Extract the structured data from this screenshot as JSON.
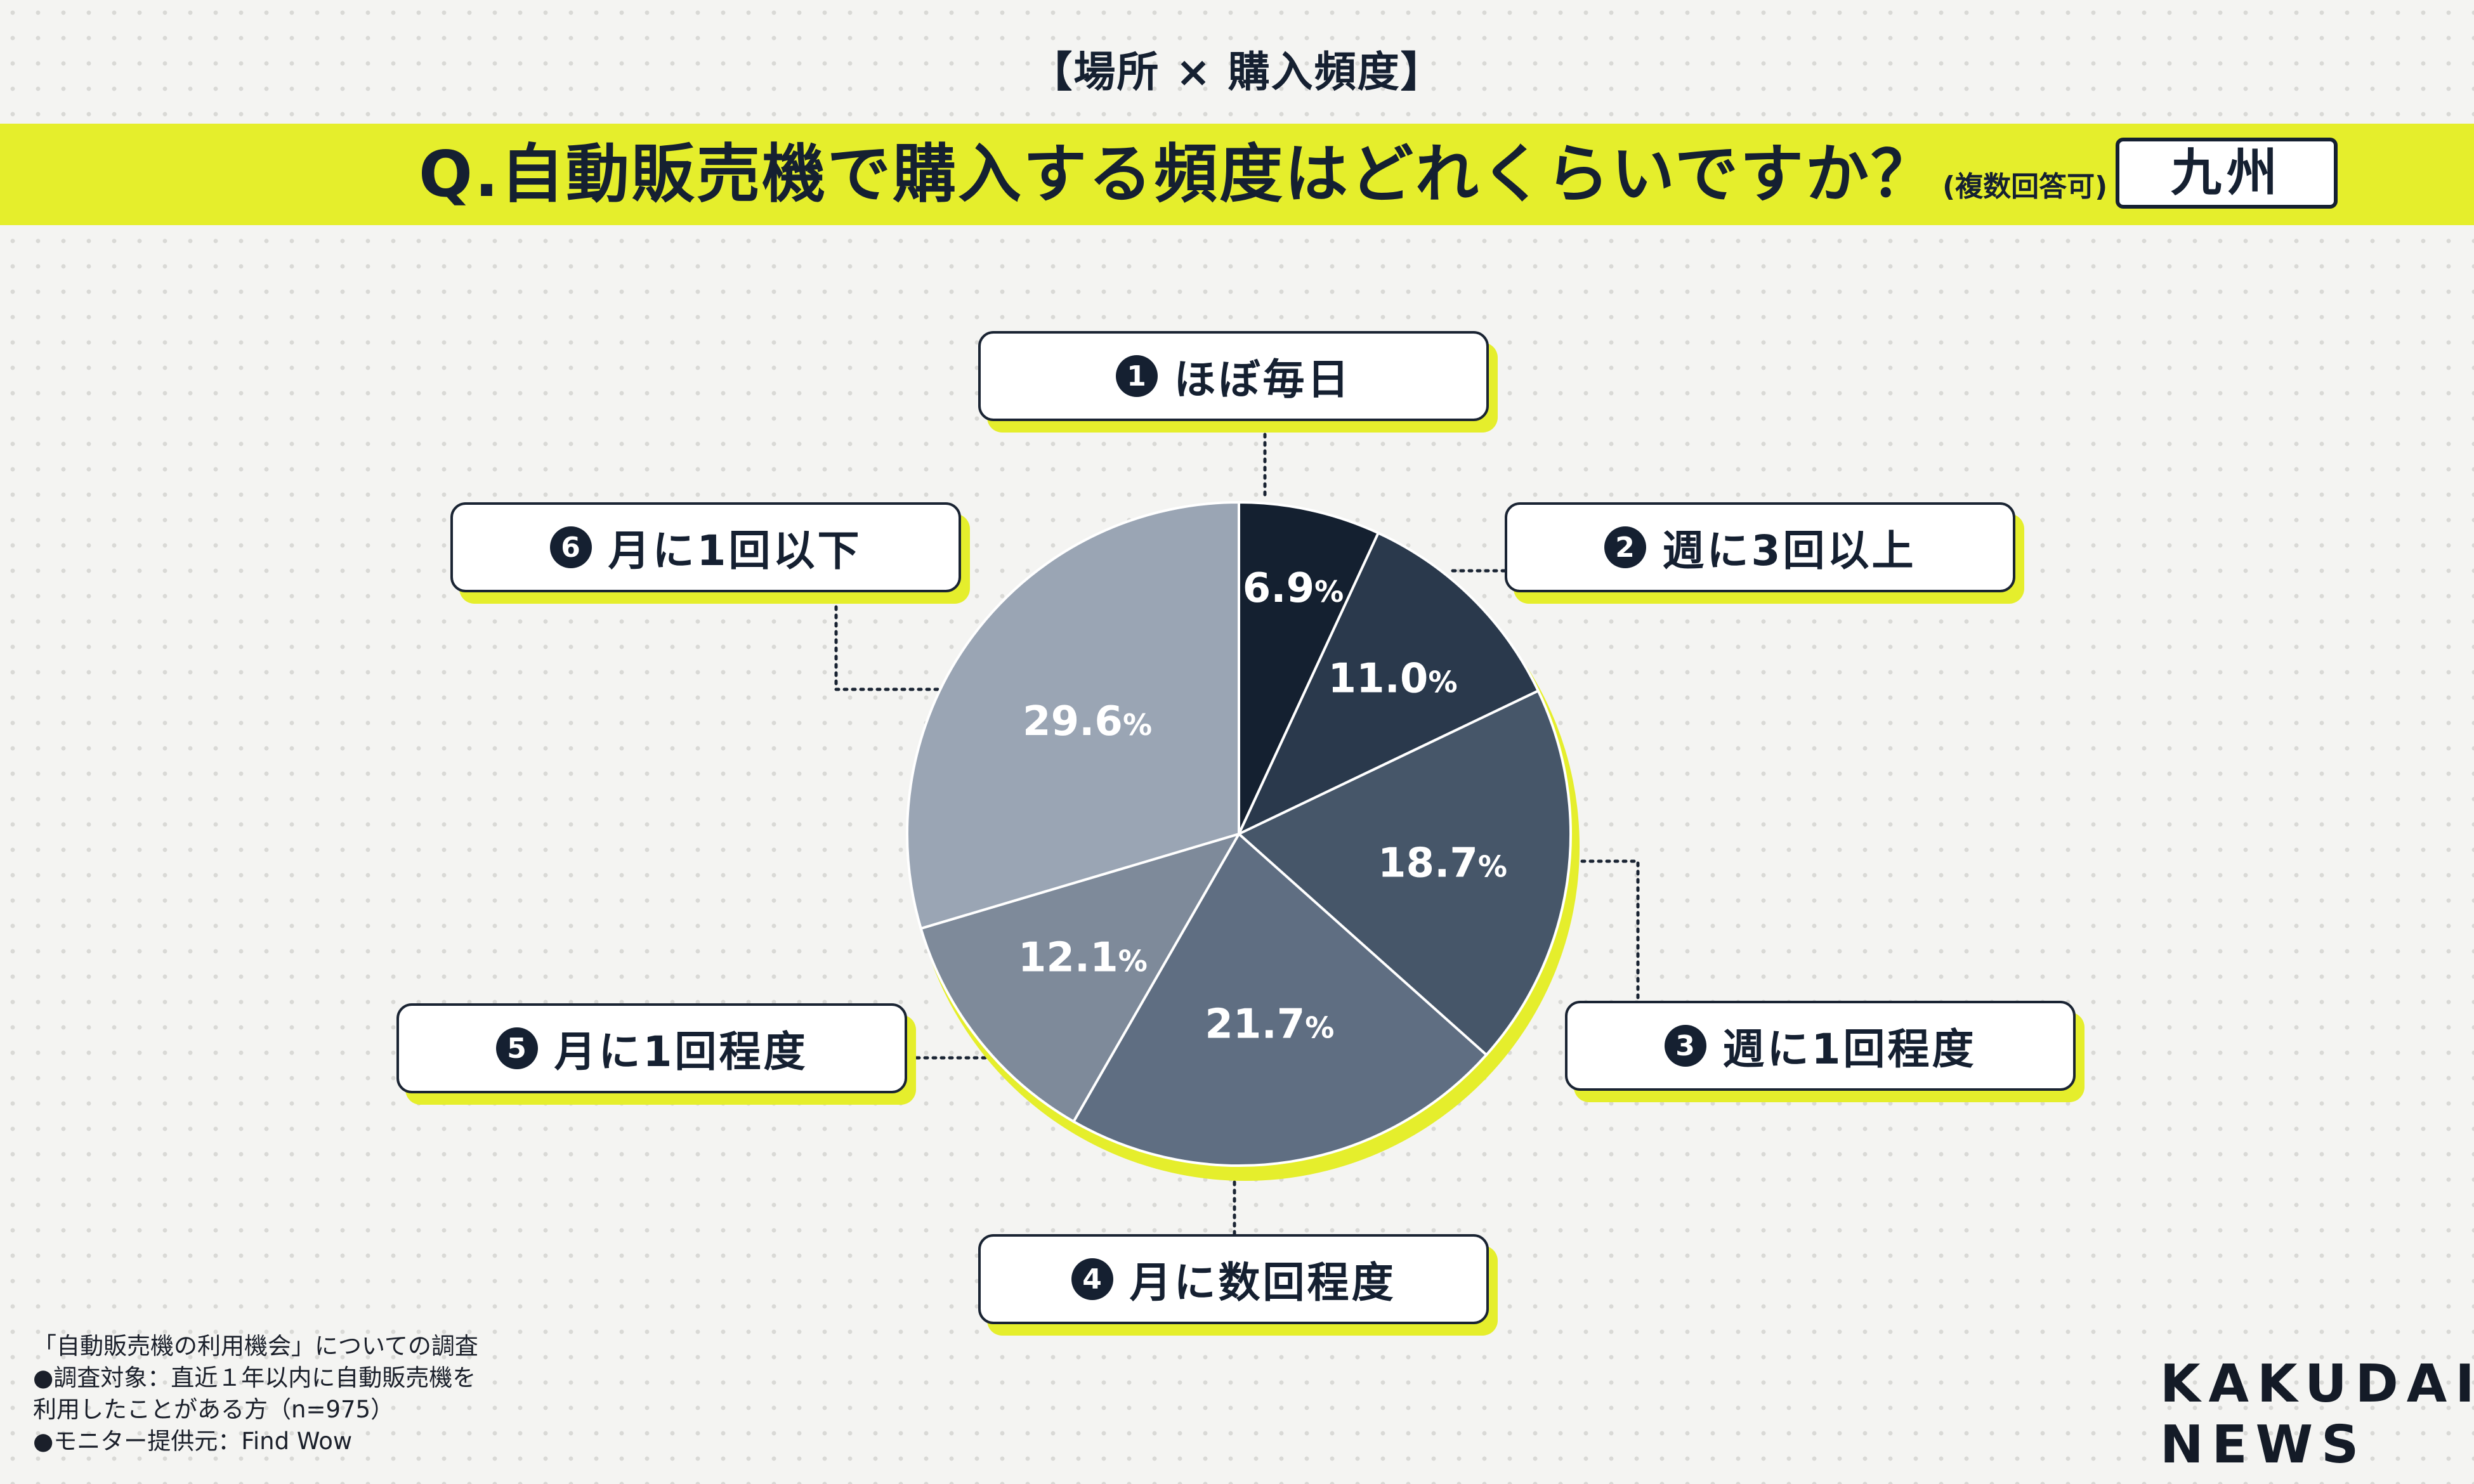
{
  "header": {
    "top_label": "【場所 × 購入頻度】",
    "question": "Q.自動販売機で購入する頻度はどれくらいですか？",
    "note": "(複数回答可)",
    "region": "九州"
  },
  "colors": {
    "accent": "#e5ee2c",
    "slices": [
      "#142030",
      "#2a394c",
      "#465669",
      "#5f6e82",
      "#7e8a9a",
      "#9aa5b4"
    ]
  },
  "chart_data": {
    "type": "pie",
    "categories": [
      "ほぼ毎日",
      "週に3回以上",
      "週に1回程度",
      "月に数回程度",
      "月に1回程度",
      "月に1回以下"
    ],
    "values": [
      6.9,
      11.0,
      18.7,
      21.7,
      12.1,
      29.6
    ],
    "value_labels": [
      {
        "main": "6.9",
        "unit": "%"
      },
      {
        "main": "11.0",
        "unit": "%"
      },
      {
        "main": "18.7",
        "unit": "%"
      },
      {
        "main": "21.7",
        "unit": "%"
      },
      {
        "main": "12.1",
        "unit": "%"
      },
      {
        "main": "29.6",
        "unit": "%"
      }
    ],
    "callout_numbers": [
      "1",
      "2",
      "3",
      "4",
      "5",
      "6"
    ]
  },
  "footnote": {
    "line1": "「自動販売機の利用機会」についての調査",
    "line2": "●調査対象：直近１年以内に自動販売機を",
    "line3": "利用したことがある方（n=975）",
    "line4": "●モニター提供元：Find Wow"
  },
  "logo": {
    "line1": "KAKUDAI",
    "line2": "NEWS"
  }
}
